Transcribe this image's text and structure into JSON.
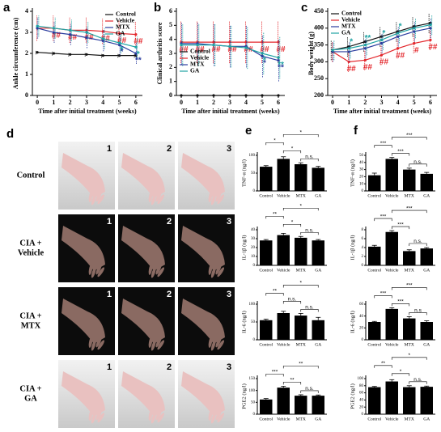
{
  "chart_data": [
    {
      "type": "line",
      "panel": "a",
      "xlabel": "Time after initial treatment (weeks)",
      "ylabel": "Ankle circumference (cm)",
      "x": [
        0,
        1,
        2,
        3,
        4,
        5,
        6
      ],
      "xlim": [
        -0.3,
        6.4
      ],
      "xticks": [
        0,
        1,
        2,
        3,
        4,
        5,
        6
      ],
      "ylim": [
        0,
        4
      ],
      "yticks": [
        0,
        1,
        2,
        3,
        4
      ],
      "legend": "upper right",
      "series": [
        {
          "name": "Control",
          "color": "#111111",
          "values": [
            2.05,
            2.0,
            1.95,
            1.95,
            1.9,
            1.9,
            1.9
          ],
          "errors": [
            0.1,
            0.1,
            0.1,
            0.1,
            0.1,
            0.1,
            0.1
          ],
          "labels": [
            null,
            null,
            null,
            null,
            null,
            null,
            null
          ],
          "label_side": "above"
        },
        {
          "name": "Vehicle",
          "color": "#e3262b",
          "values": [
            3.2,
            3.2,
            3.1,
            3.1,
            3.05,
            2.95,
            2.9
          ],
          "errors": [
            0.6,
            0.6,
            0.6,
            0.6,
            0.6,
            0.6,
            0.6
          ],
          "labels": [
            null,
            "##",
            "##",
            "##",
            "##",
            "##",
            "##"
          ],
          "label_side": "below"
        },
        {
          "name": "MTX",
          "color": "#2b3c9e",
          "values": [
            3.2,
            3.0,
            2.9,
            2.75,
            2.6,
            2.4,
            2.0
          ],
          "errors": [
            0.5,
            0.5,
            0.5,
            0.5,
            0.5,
            0.5,
            0.5
          ],
          "labels": [
            null,
            null,
            null,
            null,
            null,
            "*",
            "**"
          ],
          "label_side": "below"
        },
        {
          "name": "GA",
          "color": "#1fa3a3",
          "values": [
            3.3,
            3.2,
            3.1,
            3.0,
            2.7,
            2.5,
            2.3
          ],
          "errors": [
            0.5,
            0.5,
            0.5,
            0.5,
            0.5,
            0.5,
            0.5
          ],
          "labels": [
            null,
            null,
            null,
            null,
            null,
            "*",
            "*"
          ],
          "label_side": "below"
        }
      ]
    },
    {
      "type": "line",
      "panel": "b",
      "xlabel": "Time after initial treatment (weeks)",
      "ylabel": "Clinical arthritis score",
      "x": [
        0,
        1,
        2,
        3,
        4,
        5,
        6
      ],
      "xlim": [
        -0.3,
        6.4
      ],
      "xticks": [
        0,
        1,
        2,
        3,
        4,
        5,
        6
      ],
      "ylim": [
        0,
        6
      ],
      "yticks": [
        0,
        1,
        2,
        3,
        4,
        5,
        6
      ],
      "legend": "center left",
      "series": [
        {
          "name": "Control",
          "color": "#111111",
          "values": [
            0,
            0,
            0,
            0,
            0,
            0,
            0
          ],
          "errors": [
            0,
            0,
            0,
            0,
            0,
            0,
            0
          ],
          "labels": [
            null,
            null,
            null,
            null,
            null,
            null,
            null
          ],
          "label_side": "above"
        },
        {
          "name": "Vehicle",
          "color": "#e3262b",
          "values": [
            3.8,
            3.8,
            3.8,
            3.8,
            3.8,
            3.8,
            3.8
          ],
          "errors": [
            1.5,
            1.5,
            1.5,
            1.5,
            1.5,
            1.5,
            1.5
          ],
          "labels": [
            "##",
            "##",
            "##",
            "##",
            "##",
            "##",
            "##"
          ],
          "label_side": "below"
        },
        {
          "name": "MTX",
          "color": "#2b3c9e",
          "values": [
            3.7,
            3.7,
            3.6,
            3.5,
            3.5,
            2.8,
            2.5
          ],
          "errors": [
            1.5,
            1.5,
            1.5,
            1.5,
            1.5,
            1.5,
            1.5
          ],
          "labels": [
            null,
            null,
            null,
            null,
            null,
            "*",
            "**"
          ],
          "label_side": "below"
        },
        {
          "name": "GA",
          "color": "#1fa3a3",
          "values": [
            3.6,
            3.6,
            3.6,
            3.5,
            3.4,
            3.0,
            2.7
          ],
          "errors": [
            1.5,
            1.5,
            1.5,
            1.5,
            1.5,
            1.5,
            1.5
          ],
          "labels": [
            null,
            null,
            null,
            null,
            null,
            "*",
            "**"
          ],
          "label_side": "below"
        }
      ]
    },
    {
      "type": "line",
      "panel": "c",
      "xlabel": "Time after initial treatment (weeks)",
      "ylabel": "Body weight (g)",
      "x": [
        0,
        1,
        2,
        3,
        4,
        5,
        6
      ],
      "xlim": [
        -0.3,
        6.4
      ],
      "xticks": [
        0,
        1,
        2,
        3,
        4,
        5,
        6
      ],
      "ylim": [
        200,
        450
      ],
      "yticks": [
        200,
        250,
        300,
        350,
        400,
        450
      ],
      "legend": "upper left",
      "series": [
        {
          "name": "Control",
          "color": "#111111",
          "values": [
            335,
            345,
            360,
            375,
            390,
            405,
            415
          ],
          "errors": [
            30,
            30,
            30,
            30,
            30,
            30,
            30
          ],
          "labels": [
            null,
            null,
            null,
            null,
            null,
            null,
            null
          ],
          "label_side": "above"
        },
        {
          "name": "Vehicle",
          "color": "#e3262b",
          "values": [
            330,
            300,
            305,
            320,
            340,
            355,
            365
          ],
          "errors": [
            30,
            30,
            30,
            30,
            30,
            30,
            30
          ],
          "labels": [
            null,
            "##",
            "##",
            "##",
            "##",
            "#",
            "##"
          ],
          "label_side": "below"
        },
        {
          "name": "MTX",
          "color": "#2b3c9e",
          "values": [
            330,
            330,
            340,
            355,
            375,
            390,
            400
          ],
          "errors": [
            30,
            30,
            30,
            30,
            30,
            30,
            30
          ],
          "labels": [
            null,
            null,
            null,
            null,
            null,
            null,
            null
          ],
          "label_side": "above"
        },
        {
          "name": "GA",
          "color": "#1fa3a3",
          "values": [
            335,
            340,
            350,
            365,
            385,
            400,
            410
          ],
          "errors": [
            30,
            30,
            30,
            30,
            30,
            30,
            30
          ],
          "labels": [
            null,
            "*",
            "**",
            "*",
            "*",
            null,
            null
          ],
          "label_side": "above"
        }
      ]
    },
    {
      "type": "bar",
      "panel": "e",
      "ylabel": "TNF-α (ng/l)",
      "categories": [
        "Control",
        "Vehicle",
        "MTX",
        "GA"
      ],
      "values": [
        68,
        90,
        75,
        65
      ],
      "errors": [
        3,
        6,
        4,
        4
      ],
      "color": "#000000",
      "ylim": [
        0,
        100
      ],
      "yticks": [
        0,
        50,
        100
      ],
      "annotations": [
        {
          "from": 2,
          "to": 3,
          "label": "n.s."
        },
        {
          "from": 1,
          "to": 2,
          "label": "*"
        },
        {
          "from": 0,
          "to": 1,
          "label": "*"
        },
        {
          "from": 1,
          "to": 3,
          "label": "*"
        }
      ]
    },
    {
      "type": "bar",
      "ylabel": "IL-1β (ng/l)",
      "categories": [
        "Control",
        "Vehicle",
        "MTX",
        "GA"
      ],
      "values": [
        28,
        34,
        31,
        28
      ],
      "errors": [
        1,
        2,
        1.5,
        1
      ],
      "color": "#000000",
      "ylim": [
        0,
        40
      ],
      "yticks": [
        0,
        10,
        20,
        30,
        40
      ],
      "annotations": [
        {
          "from": 2,
          "to": 3,
          "label": "n.s."
        },
        {
          "from": 1,
          "to": 2,
          "label": "*"
        },
        {
          "from": 0,
          "to": 1,
          "label": "**"
        },
        {
          "from": 1,
          "to": 3,
          "label": "*"
        }
      ]
    },
    {
      "type": "bar",
      "ylabel": "IL-6 (ng/l)",
      "categories": [
        "Control",
        "Vehicle",
        "MTX",
        "GA"
      ],
      "values": [
        55,
        75,
        68,
        55
      ],
      "errors": [
        3,
        5,
        6,
        8
      ],
      "color": "#000000",
      "ylim": [
        0,
        100
      ],
      "yticks": [
        0,
        50,
        100
      ],
      "annotations": [
        {
          "from": 2,
          "to": 3,
          "label": "n.s."
        },
        {
          "from": 1,
          "to": 2,
          "label": "n.s."
        },
        {
          "from": 0,
          "to": 1,
          "label": "**"
        },
        {
          "from": 1,
          "to": 3,
          "label": "*"
        }
      ]
    },
    {
      "type": "bar",
      "ylabel": "PGE2 (ng/l)",
      "categories": [
        "Control",
        "Vehicle",
        "MTX",
        "GA"
      ],
      "values": [
        62,
        112,
        78,
        78
      ],
      "errors": [
        4,
        6,
        4,
        3
      ],
      "color": "#000000",
      "ylim": [
        0,
        150
      ],
      "yticks": [
        0,
        50,
        100,
        150
      ],
      "annotations": [
        {
          "from": 2,
          "to": 3,
          "label": "n.s."
        },
        {
          "from": 1,
          "to": 2,
          "label": "**"
        },
        {
          "from": 0,
          "to": 1,
          "label": "***"
        },
        {
          "from": 1,
          "to": 3,
          "label": "**"
        }
      ]
    },
    {
      "type": "bar",
      "panel": "f",
      "ylabel": "TNF-α (ng/l)",
      "categories": [
        "Control",
        "Vehicle",
        "MTX",
        "GA"
      ],
      "values": [
        22,
        45,
        30,
        24
      ],
      "errors": [
        3,
        2,
        2,
        2
      ],
      "color": "#000000",
      "ylim": [
        0,
        50
      ],
      "yticks": [
        0,
        10,
        20,
        30,
        40,
        50
      ],
      "annotations": [
        {
          "from": 2,
          "to": 3,
          "label": "n.s."
        },
        {
          "from": 1,
          "to": 2,
          "label": "***"
        },
        {
          "from": 0,
          "to": 1,
          "label": "***"
        },
        {
          "from": 1,
          "to": 3,
          "label": "***"
        }
      ]
    },
    {
      "type": "bar",
      "ylabel": "IL-1β (ng/l)",
      "categories": [
        "Control",
        "Vehicle",
        "MTX",
        "GA"
      ],
      "values": [
        4.2,
        7.5,
        3.2,
        3.8
      ],
      "errors": [
        0.3,
        0.3,
        0.3,
        0.2
      ],
      "color": "#000000",
      "ylim": [
        0,
        8
      ],
      "yticks": [
        0,
        2,
        4,
        6,
        8
      ],
      "annotations": [
        {
          "from": 2,
          "to": 3,
          "label": "n.s."
        },
        {
          "from": 1,
          "to": 2,
          "label": "***"
        },
        {
          "from": 0,
          "to": 1,
          "label": "***"
        },
        {
          "from": 1,
          "to": 3,
          "label": "***"
        }
      ]
    },
    {
      "type": "bar",
      "ylabel": "IL-6 (ng/l)",
      "categories": [
        "Control",
        "Vehicle",
        "MTX",
        "GA"
      ],
      "values": [
        30,
        52,
        36,
        30
      ],
      "errors": [
        1,
        2,
        3,
        2
      ],
      "color": "#000000",
      "ylim": [
        0,
        60
      ],
      "yticks": [
        0,
        20,
        40,
        60
      ],
      "annotations": [
        {
          "from": 2,
          "to": 3,
          "label": "n.s"
        },
        {
          "from": 1,
          "to": 2,
          "label": "***"
        },
        {
          "from": 0,
          "to": 1,
          "label": "***"
        },
        {
          "from": 1,
          "to": 3,
          "label": "***"
        }
      ]
    },
    {
      "type": "bar",
      "ylabel": "PGE2 (ng/l)",
      "categories": [
        "Control",
        "Vehicle",
        "MTX",
        "GA"
      ],
      "values": [
        76,
        92,
        76,
        77
      ],
      "errors": [
        2,
        5,
        4,
        2
      ],
      "color": "#000000",
      "ylim": [
        0,
        100
      ],
      "yticks": [
        0,
        20,
        40,
        60,
        80,
        100
      ],
      "annotations": [
        {
          "from": 2,
          "to": 3,
          "label": "n.s."
        },
        {
          "from": 1,
          "to": 2,
          "label": "*"
        },
        {
          "from": 0,
          "to": 1,
          "label": "**"
        },
        {
          "from": 1,
          "to": 3,
          "label": "*"
        }
      ]
    }
  ],
  "photo_panel": {
    "panel": "d",
    "numbers": [
      "1",
      "2",
      "3"
    ],
    "rows": [
      {
        "lines": [
          "Control"
        ]
      },
      {
        "lines": [
          "CIA +",
          "Vehicle"
        ]
      },
      {
        "lines": [
          "CIA +",
          "MTX"
        ]
      },
      {
        "lines": [
          "CIA +",
          "GA"
        ]
      }
    ]
  }
}
